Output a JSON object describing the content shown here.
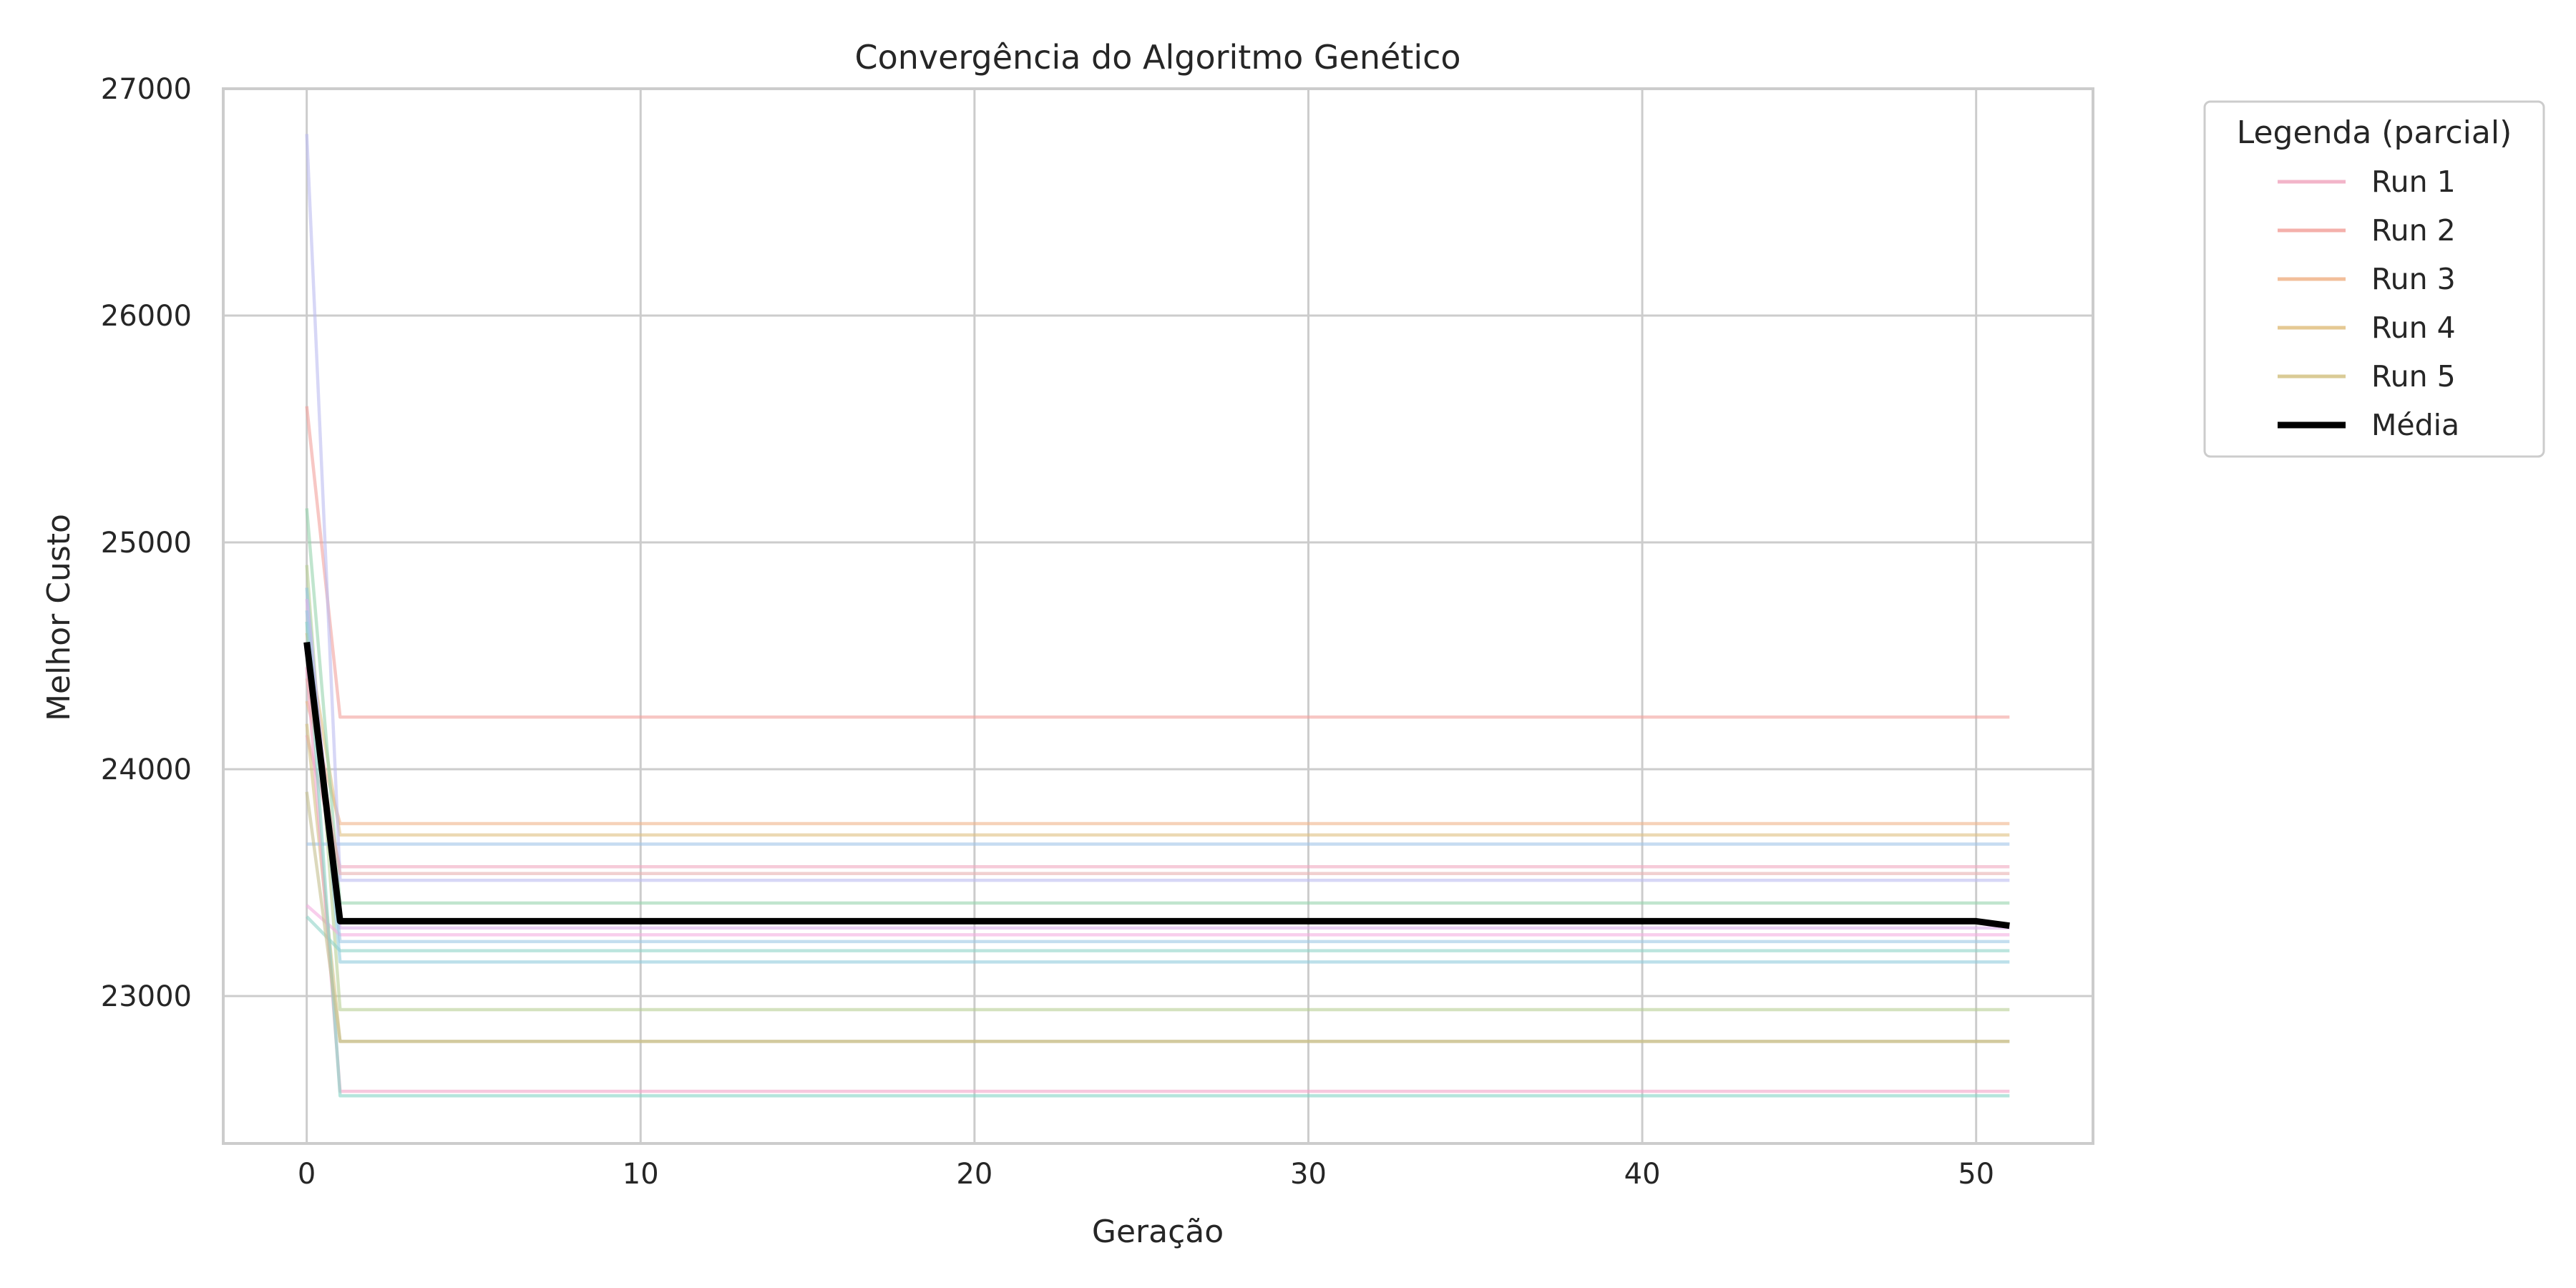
{
  "chart_data": {
    "type": "line",
    "title": "Convergência do Algoritmo Genético",
    "xlabel": "Geração",
    "ylabel": "Melhor Custo",
    "xlim": [
      -2.5,
      53.5
    ],
    "ylim": [
      22350,
      27000
    ],
    "xticks": [
      0,
      10,
      20,
      30,
      40,
      50
    ],
    "yticks": [
      23000,
      24000,
      25000,
      26000,
      27000
    ],
    "grid": true,
    "legend": {
      "title": "Legenda (parcial)",
      "placement": "outside-top-right",
      "entries": [
        {
          "label": "Run 1",
          "color": "#f0a8c0"
        },
        {
          "label": "Run 2",
          "color": "#f2a29c"
        },
        {
          "label": "Run 3",
          "color": "#f0b48a"
        },
        {
          "label": "Run 4",
          "color": "#e0bf80"
        },
        {
          "label": "Run 5",
          "color": "#d4c284"
        },
        {
          "label": "Média",
          "color": "#000000"
        }
      ]
    },
    "series": [
      {
        "color": "#f0a8c0",
        "values": [
          [
            0,
            24150
          ],
          [
            1,
            23570
          ],
          [
            51,
            23570
          ]
        ]
      },
      {
        "color": "#f2a29c",
        "values": [
          [
            0,
            25600
          ],
          [
            1,
            24230
          ],
          [
            51,
            24230
          ]
        ]
      },
      {
        "color": "#f0b48a",
        "values": [
          [
            0,
            24300
          ],
          [
            1,
            23760
          ],
          [
            51,
            23760
          ]
        ]
      },
      {
        "color": "#e0bf80",
        "values": [
          [
            0,
            24600
          ],
          [
            1,
            23710
          ],
          [
            51,
            23710
          ]
        ]
      },
      {
        "color": "#d4c284",
        "values": [
          [
            0,
            24200
          ],
          [
            1,
            22800
          ],
          [
            51,
            22800
          ]
        ]
      },
      {
        "color": "#b8cf95",
        "values": [
          [
            0,
            24900
          ],
          [
            1,
            22940
          ],
          [
            51,
            22940
          ]
        ]
      },
      {
        "color": "#96d3ae",
        "values": [
          [
            0,
            25150
          ],
          [
            1,
            23410
          ],
          [
            51,
            23410
          ]
        ]
      },
      {
        "color": "#8fd3c8",
        "values": [
          [
            0,
            23350
          ],
          [
            1,
            23200
          ],
          [
            51,
            23200
          ]
        ]
      },
      {
        "color": "#8fcbdc",
        "values": [
          [
            0,
            24800
          ],
          [
            1,
            23150
          ],
          [
            51,
            23150
          ]
        ]
      },
      {
        "color": "#a0c4e8",
        "values": [
          [
            0,
            23670
          ],
          [
            1,
            23670
          ],
          [
            51,
            23670
          ]
        ]
      },
      {
        "color": "#bcbcf0",
        "values": [
          [
            0,
            26800
          ],
          [
            1,
            23510
          ],
          [
            51,
            23510
          ]
        ]
      },
      {
        "color": "#dcb0ec",
        "values": [
          [
            0,
            24750
          ],
          [
            1,
            23300
          ],
          [
            51,
            23300
          ]
        ]
      },
      {
        "color": "#f4aee0",
        "values": [
          [
            0,
            23400
          ],
          [
            1,
            23270
          ],
          [
            51,
            23270
          ]
        ]
      },
      {
        "color": "#f2a4c8",
        "values": [
          [
            0,
            24450
          ],
          [
            1,
            22580
          ],
          [
            51,
            22580
          ]
        ]
      },
      {
        "color": "#84d4c4",
        "values": [
          [
            0,
            24650
          ],
          [
            1,
            22560
          ],
          [
            51,
            22560
          ]
        ]
      },
      {
        "color": "#c4c090",
        "values": [
          [
            0,
            23900
          ],
          [
            1,
            22800
          ],
          [
            51,
            22800
          ]
        ]
      },
      {
        "color": "#9cc8e4",
        "values": [
          [
            0,
            24700
          ],
          [
            1,
            23240
          ],
          [
            51,
            23240
          ]
        ]
      },
      {
        "color": "#e8b0b0",
        "values": [
          [
            0,
            24400
          ],
          [
            1,
            23540
          ],
          [
            51,
            23540
          ]
        ]
      }
    ],
    "mean_series": {
      "color": "#000000",
      "values": [
        [
          0,
          24560
        ],
        [
          1,
          23330
        ],
        [
          50,
          23330
        ],
        [
          51,
          23310
        ]
      ]
    }
  }
}
